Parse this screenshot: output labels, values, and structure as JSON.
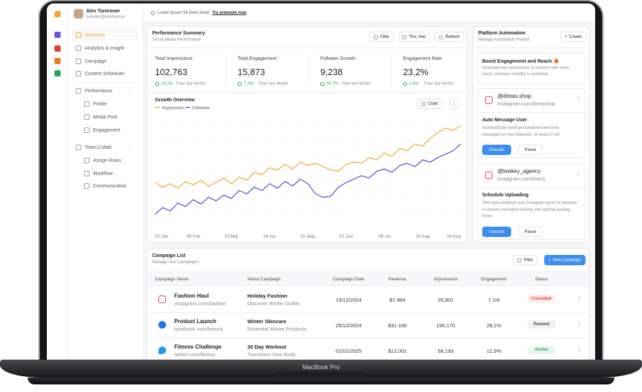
{
  "sidebar": {
    "user_name": "Alex Turnrover",
    "user_email": "turnalex@mediani.ac",
    "nav": [
      "Overview",
      "Analytics & Insight",
      "Campaign",
      "Content Scheduler"
    ],
    "performance": {
      "label": "Performance",
      "items": [
        "Profile",
        "Media Post",
        "Engagement"
      ]
    },
    "team": {
      "label": "Team Collab",
      "items": [
        "Assign Roles",
        "Workflow",
        "Communication"
      ]
    }
  },
  "topbar": {
    "text": "Lorem Ipsum Sit Dolor Amet",
    "link": "Try premium now"
  },
  "performance": {
    "title": "Performance Summary",
    "subtitle": "Social Media Performance",
    "buttons": [
      "Filter",
      "This Year",
      "Refresh"
    ],
    "metrics": [
      {
        "label": "Total Impressions",
        "value": "102,763",
        "change": "13.2%",
        "note": "Than last Month"
      },
      {
        "label": "Total Engagement",
        "value": "15,873",
        "change": "7.2%",
        "note": "Than last Month"
      },
      {
        "label": "Follower Growth",
        "value": "9,238",
        "change": "50.7%",
        "note": "Than last Month"
      },
      {
        "label": "Engagement Rate",
        "value": "23,2%",
        "change": "1.5%",
        "note": "Than last Month"
      }
    ]
  },
  "chart_data": {
    "type": "line",
    "title": "Growth Overview",
    "button": "Chart",
    "categories": [
      "01 Jan",
      null,
      null,
      null,
      null,
      "08 Feb",
      null,
      null,
      null,
      null,
      "15 Mar",
      null,
      null,
      null,
      null,
      "24 Apr",
      null,
      null,
      null,
      null,
      "31 May",
      null,
      null,
      null,
      null,
      "01 Jun",
      null,
      null,
      null,
      null,
      "08 Jul",
      null,
      null,
      null,
      null,
      "15 Aug",
      null,
      null,
      null,
      null,
      "24 Aug"
    ],
    "series": [
      {
        "name": "Impressions",
        "color": "#e8a628",
        "values": [
          40,
          36,
          39,
          35,
          41,
          38,
          42,
          37,
          40,
          44,
          39,
          45,
          42,
          49,
          47,
          53,
          51,
          56,
          52,
          58,
          55,
          57,
          54,
          51,
          50,
          56,
          58,
          57,
          62,
          60,
          66,
          63,
          70,
          68,
          74,
          72,
          79,
          84,
          88,
          86,
          90
        ]
      },
      {
        "name": "Followers",
        "color": "#4646d6",
        "values": [
          12,
          18,
          15,
          22,
          19,
          25,
          21,
          27,
          24,
          29,
          26,
          33,
          30,
          36,
          33,
          39,
          35,
          41,
          37,
          43,
          39,
          30,
          27,
          28,
          36,
          40,
          43,
          46,
          44,
          50,
          52,
          49,
          55,
          57,
          54,
          60,
          58,
          62,
          65,
          68,
          74
        ]
      }
    ],
    "ylim": [
      0,
      100
    ]
  },
  "automation": {
    "title": "Platform Automation",
    "subtitle": "Manage Automation Prompt",
    "button": "Create",
    "intro": {
      "title": "Boost Engagement and Reach",
      "text": "Automate key interactions to connect with more users, increase visibility to audience"
    },
    "cards": [
      {
        "handle": "@dimas.shop",
        "url": "instagram.com/dimashop",
        "task": "Auto Message User",
        "text": "Automatically send personalized welcome messages to new followers, or reach it out.",
        "buttons": [
          "Execute",
          "Pause"
        ]
      },
      {
        "handle": "@lowkey_agency",
        "url": "instagram.com/lowcy",
        "task": "Schedule Uploading",
        "text": "Plan and schedule your Instagram posts in advance to ensure consistent activity and optimal posting times.",
        "buttons": [
          "Execute",
          "Pause"
        ]
      }
    ]
  },
  "campaigns": {
    "title": "Campaign List",
    "subtitle": "Manage Your Campaigns",
    "buttons": [
      "Filter",
      "New Campaign"
    ],
    "columns": [
      "Campaign Name",
      "About Campaign",
      "Campaign Date",
      "Revenue",
      "Impressions",
      "Engagement",
      "Status"
    ],
    "rows": [
      [
        "Fashion Haul",
        "instagram.com/fashion",
        "Holiday Fashion",
        "Discover Winter Outfits",
        "13/12/2024",
        "$7.984",
        "25,801",
        "7,1%",
        "Canceled"
      ],
      [
        "Product Launch",
        "facebook.com/beauty",
        "Winter Skincare",
        "Essential Winter Products",
        "25/12/2024",
        "$31.106",
        "195,170",
        "28,1%",
        "Paused"
      ],
      [
        "Fitness Challenge",
        "twitter.com/fitness",
        "30 Day Workout",
        "Transform Your Body",
        "01/01/2025",
        "$12.001",
        "68,193",
        "12,9%",
        "Active"
      ]
    ]
  },
  "device": {
    "label": "MacBook Pro"
  }
}
